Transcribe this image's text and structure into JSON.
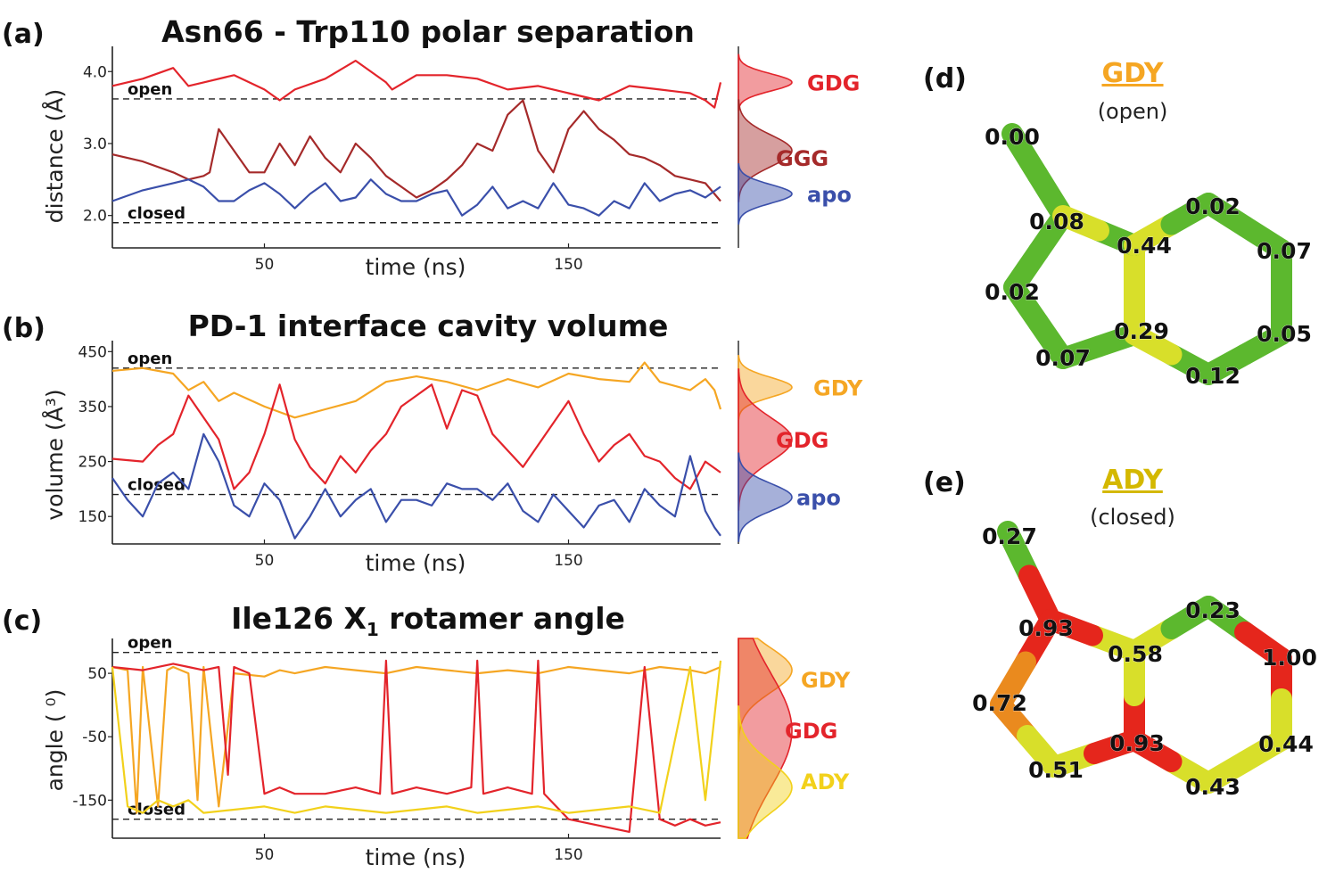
{
  "colors": {
    "GDG": "#e3242b",
    "GGG": "#a52a2a",
    "apo": "#3a4faa",
    "GDY": "#f5a623",
    "ADY": "#f2d11b",
    "dashed": "#222222",
    "axis": "#222222",
    "bond_green": "#5cb82e",
    "bond_yellow": "#d8df2a",
    "bond_orange": "#ea8a1e",
    "bond_red": "#e5261c"
  },
  "panels": {
    "a": {
      "letter": "(a)",
      "title": "Asn66 - Trp110 polar separation",
      "ylabel": "distance (Å)",
      "xlabel": "time (ns)"
    },
    "b": {
      "letter": "(b)",
      "title": "PD-1 interface cavity volume",
      "ylabel": "volume (Å³)",
      "xlabel": "time (ns)"
    },
    "c": {
      "letter": "(c)",
      "title": "Ile126 X",
      "title_sub": "1",
      "title_tail": " rotamer angle",
      "ylabel": "angle ( ⁰)",
      "xlabel": "time (ns)"
    },
    "d": {
      "letter": "(d)",
      "name": "GDY",
      "state": "(open)"
    },
    "e": {
      "letter": "(e)",
      "name": "ADY",
      "state": "(closed)"
    }
  },
  "chart_data": [
    {
      "panel": "a",
      "type": "line",
      "title": "Asn66 - Trp110 polar separation",
      "xlabel": "time (ns)",
      "ylabel": "distance (Å)",
      "xlim": [
        0,
        200
      ],
      "ylim": [
        1.55,
        4.35
      ],
      "xticks": [
        50,
        150
      ],
      "yticks": [
        {
          "v": 4.0,
          "label": "4.0"
        },
        {
          "v": 3.0,
          "label": "3.0"
        },
        {
          "v": 2.0,
          "label": "2.0"
        }
      ],
      "reference_lines": [
        {
          "y": 3.62,
          "label": "open"
        },
        {
          "y": 1.9,
          "label": "closed"
        }
      ],
      "series": [
        {
          "name": "GDG",
          "color_key": "GDG",
          "x": [
            0,
            10,
            20,
            25,
            30,
            40,
            50,
            55,
            60,
            70,
            80,
            90,
            92,
            100,
            110,
            120,
            130,
            140,
            150,
            160,
            170,
            180,
            190,
            195,
            198,
            200
          ],
          "y": [
            3.8,
            3.9,
            4.05,
            3.8,
            3.85,
            3.95,
            3.75,
            3.6,
            3.75,
            3.9,
            4.15,
            3.85,
            3.75,
            3.95,
            3.95,
            3.9,
            3.75,
            3.8,
            3.7,
            3.6,
            3.8,
            3.75,
            3.7,
            3.6,
            3.5,
            3.85
          ]
        },
        {
          "name": "GGG",
          "color_key": "GGG",
          "x": [
            0,
            10,
            20,
            25,
            30,
            32,
            35,
            40,
            45,
            50,
            55,
            60,
            65,
            70,
            75,
            80,
            85,
            90,
            95,
            100,
            105,
            110,
            115,
            120,
            125,
            130,
            135,
            140,
            145,
            150,
            155,
            160,
            165,
            170,
            175,
            180,
            185,
            190,
            195,
            200
          ],
          "y": [
            2.85,
            2.75,
            2.6,
            2.5,
            2.55,
            2.6,
            3.2,
            2.9,
            2.6,
            2.6,
            3.0,
            2.7,
            3.1,
            2.8,
            2.6,
            3.0,
            2.8,
            2.55,
            2.4,
            2.25,
            2.35,
            2.5,
            2.7,
            3.0,
            2.9,
            3.4,
            3.6,
            2.9,
            2.6,
            3.2,
            3.45,
            3.2,
            3.05,
            2.85,
            2.8,
            2.7,
            2.55,
            2.5,
            2.45,
            2.2
          ]
        },
        {
          "name": "apo",
          "color_key": "apo",
          "x": [
            0,
            10,
            20,
            25,
            30,
            35,
            40,
            45,
            50,
            55,
            60,
            65,
            70,
            75,
            80,
            85,
            90,
            95,
            100,
            105,
            110,
            115,
            120,
            125,
            130,
            135,
            140,
            145,
            150,
            155,
            160,
            165,
            170,
            175,
            180,
            185,
            190,
            195,
            200
          ],
          "y": [
            2.2,
            2.35,
            2.45,
            2.5,
            2.4,
            2.2,
            2.2,
            2.35,
            2.45,
            2.3,
            2.1,
            2.3,
            2.45,
            2.2,
            2.25,
            2.5,
            2.3,
            2.2,
            2.2,
            2.3,
            2.35,
            2.0,
            2.15,
            2.4,
            2.1,
            2.2,
            2.1,
            2.45,
            2.15,
            2.1,
            2.0,
            2.2,
            2.1,
            2.45,
            2.2,
            2.3,
            2.35,
            2.25,
            2.4
          ]
        }
      ],
      "distributions": [
        {
          "name": "GDG",
          "color_key": "GDG",
          "mean": 3.85,
          "sd": 0.12,
          "legend_y": 3.85
        },
        {
          "name": "GGG",
          "color_key": "GGG",
          "mean": 2.9,
          "sd": 0.22,
          "legend_y": 2.8
        },
        {
          "name": "apo",
          "color_key": "apo",
          "mean": 2.3,
          "sd": 0.13,
          "legend_y": 2.3
        }
      ]
    },
    {
      "panel": "b",
      "type": "line",
      "title": "PD-1 interface cavity volume",
      "xlabel": "time (ns)",
      "ylabel": "volume (Å³)",
      "xlim": [
        0,
        200
      ],
      "ylim": [
        100,
        470
      ],
      "xticks": [
        50,
        150
      ],
      "yticks": [
        {
          "v": 450,
          "label": "450"
        },
        {
          "v": 350,
          "label": "350"
        },
        {
          "v": 250,
          "label": "250"
        },
        {
          "v": 150,
          "label": "150"
        }
      ],
      "reference_lines": [
        {
          "y": 420,
          "label": "open"
        },
        {
          "y": 190,
          "label": "closed"
        }
      ],
      "series": [
        {
          "name": "GDY",
          "color_key": "GDY",
          "x": [
            0,
            10,
            20,
            25,
            30,
            35,
            40,
            50,
            55,
            60,
            70,
            80,
            90,
            100,
            110,
            120,
            130,
            140,
            150,
            160,
            170,
            175,
            180,
            190,
            195,
            198,
            200
          ],
          "y": [
            415,
            420,
            410,
            380,
            395,
            360,
            375,
            350,
            340,
            330,
            345,
            360,
            395,
            405,
            395,
            380,
            400,
            385,
            410,
            400,
            395,
            430,
            395,
            380,
            400,
            380,
            345
          ]
        },
        {
          "name": "GDG",
          "color_key": "GDG",
          "x": [
            0,
            10,
            15,
            20,
            25,
            30,
            35,
            40,
            45,
            50,
            55,
            60,
            65,
            70,
            75,
            80,
            85,
            90,
            95,
            100,
            105,
            110,
            115,
            120,
            125,
            130,
            135,
            140,
            145,
            150,
            155,
            160,
            165,
            170,
            175,
            180,
            185,
            190,
            195,
            200
          ],
          "y": [
            255,
            250,
            280,
            300,
            370,
            330,
            290,
            200,
            230,
            300,
            390,
            290,
            240,
            210,
            260,
            230,
            270,
            300,
            350,
            370,
            390,
            310,
            380,
            370,
            300,
            270,
            240,
            280,
            320,
            360,
            300,
            250,
            280,
            300,
            260,
            250,
            220,
            200,
            250,
            230
          ]
        },
        {
          "name": "apo",
          "color_key": "apo",
          "x": [
            0,
            5,
            10,
            15,
            20,
            25,
            30,
            35,
            40,
            45,
            50,
            55,
            60,
            65,
            70,
            75,
            80,
            85,
            90,
            95,
            100,
            105,
            110,
            115,
            120,
            125,
            130,
            135,
            140,
            145,
            150,
            155,
            160,
            165,
            170,
            175,
            180,
            185,
            190,
            195,
            198,
            200
          ],
          "y": [
            220,
            180,
            150,
            210,
            230,
            200,
            300,
            250,
            170,
            150,
            210,
            180,
            110,
            150,
            200,
            150,
            180,
            200,
            140,
            180,
            180,
            170,
            210,
            200,
            200,
            180,
            210,
            160,
            140,
            190,
            160,
            130,
            170,
            180,
            140,
            200,
            170,
            150,
            260,
            160,
            130,
            115
          ]
        }
      ],
      "distributions": [
        {
          "name": "GDY",
          "color_key": "GDY",
          "mean": 385,
          "sd": 18,
          "legend_y": 385
        },
        {
          "name": "GDG",
          "color_key": "GDG",
          "mean": 290,
          "sd": 40,
          "legend_y": 290
        },
        {
          "name": "apo",
          "color_key": "apo",
          "mean": 185,
          "sd": 25,
          "legend_y": 185
        }
      ]
    },
    {
      "panel": "c",
      "type": "line",
      "title": "Ile126 X1 rotamer angle",
      "xlabel": "time (ns)",
      "ylabel": "angle ( ⁰)",
      "xlim": [
        0,
        200
      ],
      "ylim": [
        -210,
        105
      ],
      "xticks": [
        50,
        150
      ],
      "yticks": [
        {
          "v": 50,
          "label": "50"
        },
        {
          "v": -50,
          "label": "-50"
        },
        {
          "v": -150,
          "label": "-150"
        }
      ],
      "reference_lines": [
        {
          "y": 83,
          "label": "open"
        },
        {
          "y": -180,
          "label": "closed"
        }
      ],
      "series": [
        {
          "name": "GDY",
          "color_key": "GDY",
          "x": [
            0,
            5,
            8,
            10,
            15,
            18,
            20,
            25,
            28,
            30,
            35,
            40,
            50,
            55,
            60,
            70,
            80,
            90,
            100,
            110,
            120,
            130,
            140,
            150,
            160,
            170,
            180,
            190,
            195,
            200
          ],
          "y": [
            60,
            55,
            -170,
            60,
            -160,
            55,
            60,
            50,
            -150,
            60,
            -160,
            50,
            45,
            55,
            50,
            60,
            55,
            50,
            60,
            55,
            50,
            55,
            50,
            60,
            55,
            50,
            60,
            55,
            50,
            60
          ]
        },
        {
          "name": "GDG",
          "color_key": "GDG",
          "x": [
            0,
            10,
            20,
            25,
            30,
            35,
            38,
            40,
            45,
            50,
            55,
            60,
            70,
            80,
            88,
            90,
            92,
            100,
            110,
            118,
            120,
            122,
            130,
            138,
            140,
            142,
            150,
            160,
            170,
            175,
            180,
            185,
            190,
            195,
            200
          ],
          "y": [
            60,
            55,
            65,
            60,
            55,
            60,
            -110,
            60,
            50,
            -140,
            -130,
            -140,
            -140,
            -130,
            -140,
            70,
            -140,
            -130,
            -140,
            -130,
            70,
            -140,
            -130,
            -140,
            70,
            -140,
            -180,
            -190,
            -200,
            60,
            -180,
            -190,
            -180,
            -190,
            -185
          ]
        },
        {
          "name": "ADY",
          "color_key": "ADY",
          "x": [
            0,
            5,
            10,
            15,
            20,
            25,
            30,
            40,
            50,
            60,
            70,
            80,
            90,
            100,
            110,
            120,
            130,
            140,
            150,
            160,
            170,
            180,
            190,
            195,
            200
          ],
          "y": [
            60,
            -160,
            -170,
            -150,
            -160,
            -150,
            -170,
            -165,
            -160,
            -170,
            -160,
            -165,
            -170,
            -165,
            -160,
            -170,
            -165,
            -160,
            -170,
            -165,
            -160,
            -170,
            60,
            -150,
            70
          ]
        }
      ],
      "distributions": [
        {
          "name": "GDY",
          "color_key": "GDY",
          "mean": 55,
          "sd": 35,
          "legend_y": 40
        },
        {
          "name": "GDG",
          "color_key": "GDG",
          "mean": -40,
          "sd": 90,
          "legend_y": -40
        },
        {
          "name": "ADY",
          "color_key": "ADY",
          "mean": -130,
          "sd": 40,
          "legend_y": -120
        }
      ]
    },
    {
      "panel": "d",
      "type": "diagram",
      "molecule": "GDY",
      "state": "(open)",
      "bond_labels": [
        "0.00",
        "0.08",
        "0.02",
        "0.07",
        "0.44",
        "0.29",
        "0.02",
        "0.07",
        "0.05",
        "0.12"
      ]
    },
    {
      "panel": "e",
      "type": "diagram",
      "molecule": "ADY",
      "state": "(closed)",
      "bond_labels": [
        "0.27",
        "0.93",
        "0.72",
        "0.51",
        "0.58",
        "0.93",
        "0.23",
        "1.00",
        "0.44",
        "0.43"
      ]
    }
  ]
}
